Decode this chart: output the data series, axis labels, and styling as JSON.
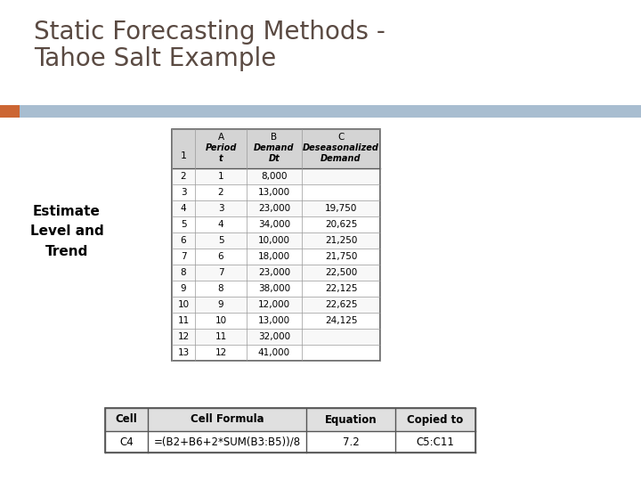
{
  "title_line1": "Static Forecasting Methods -",
  "title_line2": "Tahoe Salt Example",
  "title_color": "#5a4a42",
  "title_fontsize": 20,
  "header_bar_color": "#a8bdd0",
  "accent_rect_color": "#cc6633",
  "side_label": "Estimate\nLevel and\nTrend",
  "side_label_fontsize": 11,
  "bg_color": "#ffffff",
  "table1": {
    "col_letters": [
      "A",
      "B",
      "C"
    ],
    "sub_headers_line1": [
      "Period",
      "Demand",
      "Deseasonalized"
    ],
    "sub_headers_line2": [
      "t",
      "Dt",
      "Demand"
    ],
    "row_num_col_label": "1",
    "data_rows": [
      [
        "2",
        "1",
        "8,000",
        ""
      ],
      [
        "3",
        "2",
        "13,000",
        ""
      ],
      [
        "4",
        "3",
        "23,000",
        "19,750"
      ],
      [
        "5",
        "4",
        "34,000",
        "20,625"
      ],
      [
        "6",
        "5",
        "10,000",
        "21,250"
      ],
      [
        "7",
        "6",
        "18,000",
        "21,750"
      ],
      [
        "8",
        "7",
        "23,000",
        "22,500"
      ],
      [
        "9",
        "8",
        "38,000",
        "22,125"
      ],
      [
        "10",
        "9",
        "12,000",
        "22,625"
      ],
      [
        "11",
        "10",
        "13,000",
        "24,125"
      ],
      [
        "12",
        "11",
        "32,000",
        ""
      ],
      [
        "13",
        "12",
        "41,000",
        ""
      ]
    ]
  },
  "table2": {
    "col_headers": [
      "Cell",
      "Cell Formula",
      "Equation",
      "Copied to"
    ],
    "rows": [
      [
        "C4",
        "=(B2+B6+2*SUM(B3:B5))/8",
        "7.2",
        "C5:C11"
      ]
    ]
  }
}
